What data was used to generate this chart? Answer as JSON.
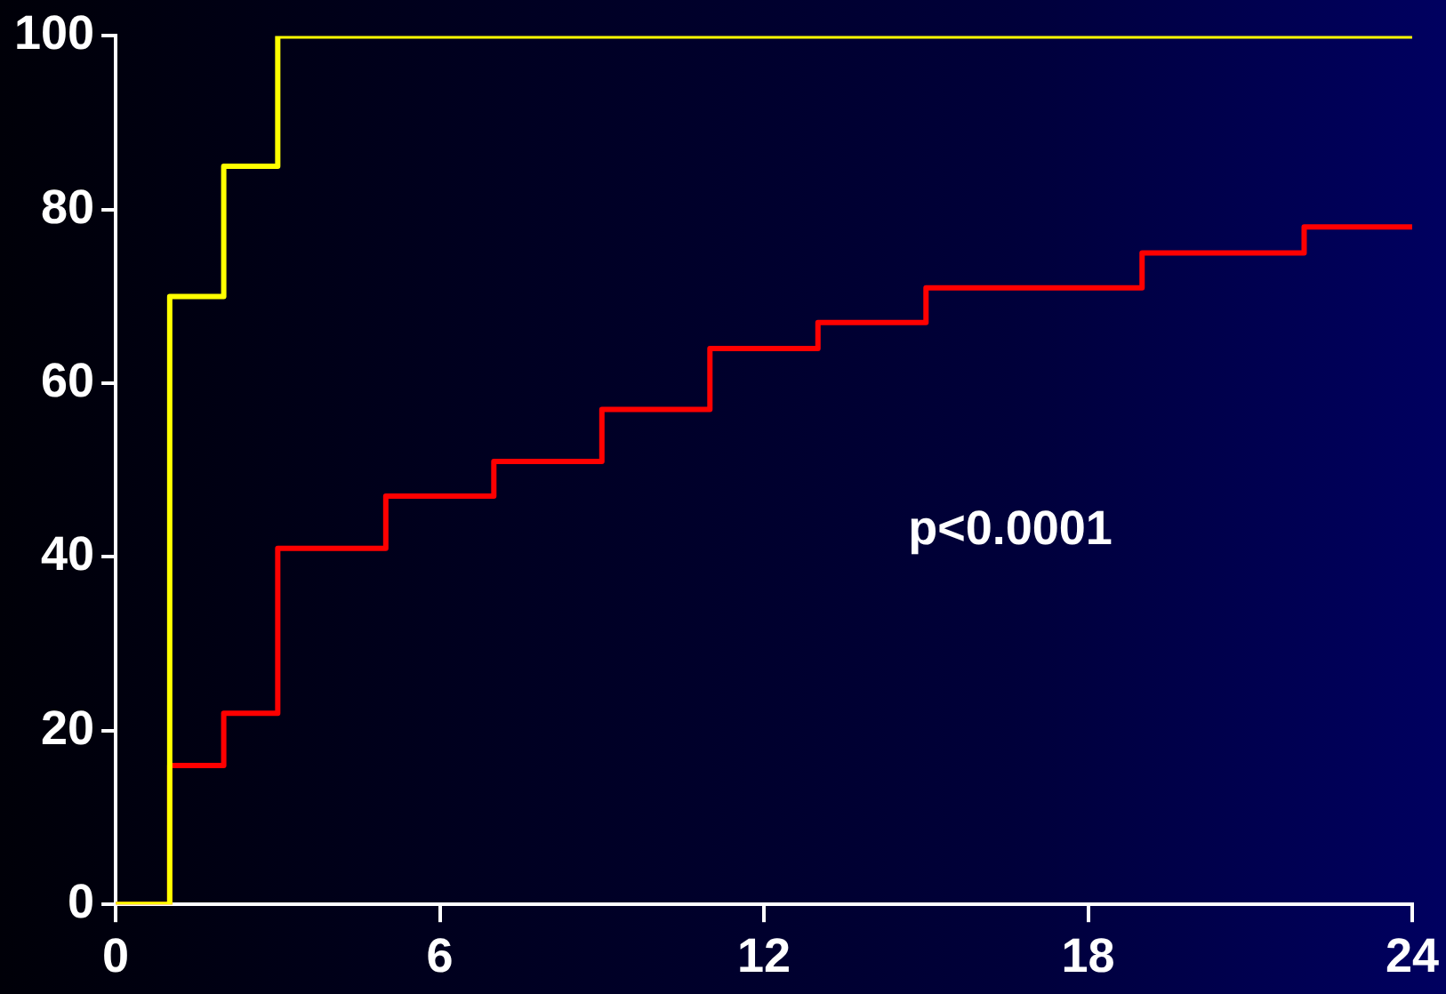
{
  "chart_data": {
    "type": "step",
    "annotations": [
      "p<0.0001"
    ],
    "series": [
      {
        "color": "#ffff00",
        "x": [
          0,
          1,
          2,
          3,
          24
        ],
        "values": [
          0,
          70,
          85,
          100,
          100
        ]
      },
      {
        "color": "#ff0000",
        "x": [
          0,
          1,
          2,
          3,
          5,
          7,
          9,
          11,
          13,
          15,
          19,
          22,
          24
        ],
        "values": [
          0,
          16,
          22,
          41,
          47,
          51,
          57,
          64,
          67,
          71,
          75,
          78,
          78
        ]
      }
    ],
    "xlim": [
      0,
      24
    ],
    "xticks": [
      0,
      6,
      12,
      18,
      24
    ],
    "ylim": [
      0,
      100
    ],
    "yticks": [
      0,
      20,
      40,
      60,
      80,
      100
    ],
    "grid": false,
    "legend": false
  }
}
